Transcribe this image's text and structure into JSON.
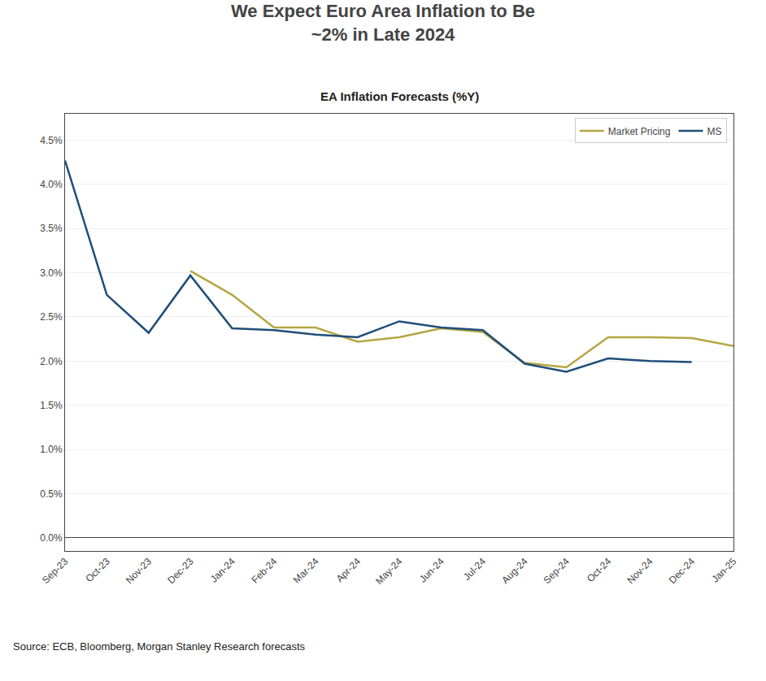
{
  "chart_data": {
    "type": "line",
    "title": "We Expect Euro Area Inflation to Be\n~2% in Late 2024",
    "subtitle": "EA Inflation Forecasts (%Y)",
    "annotations": [
      "Source: ECB, Bloomberg, Morgan Stanley Research forecasts"
    ],
    "categories": [
      "Sep-23",
      "Oct-23",
      "Nov-23",
      "Dec-23",
      "Jan-24",
      "Feb-24",
      "Mar-24",
      "Apr-24",
      "May-24",
      "Jun-24",
      "Jul-24",
      "Aug-24",
      "Sep-24",
      "Oct-24",
      "Nov-24",
      "Dec-24",
      "Jan-25"
    ],
    "series": [
      {
        "name": "Market Pricing",
        "color": "#b5a642",
        "values": [
          null,
          null,
          null,
          3.02,
          2.75,
          2.38,
          2.38,
          2.22,
          2.27,
          2.37,
          2.33,
          1.98,
          1.93,
          2.27,
          2.27,
          2.26,
          2.17
        ]
      },
      {
        "name": "MS",
        "color": "#1f4e79",
        "values": [
          4.27,
          2.75,
          2.32,
          2.97,
          2.37,
          2.35,
          2.3,
          2.27,
          2.45,
          2.38,
          2.35,
          1.97,
          1.88,
          2.03,
          2.0,
          1.99,
          null
        ]
      }
    ],
    "ylim": [
      -0.15,
      4.8
    ],
    "yticks": [
      {
        "value": 0.0,
        "label": "0.0%"
      },
      {
        "value": 0.5,
        "label": "0.5%"
      },
      {
        "value": 1.0,
        "label": "1.0%"
      },
      {
        "value": 1.5,
        "label": "1.5%"
      },
      {
        "value": 2.0,
        "label": "2.0%"
      },
      {
        "value": 2.5,
        "label": "2.5%"
      },
      {
        "value": 3.0,
        "label": "3.0%"
      },
      {
        "value": 3.5,
        "label": "3.5%"
      },
      {
        "value": 4.0,
        "label": "4.0%"
      },
      {
        "value": 4.5,
        "label": "4.5%"
      }
    ],
    "grid": true,
    "legend": "upper right"
  }
}
